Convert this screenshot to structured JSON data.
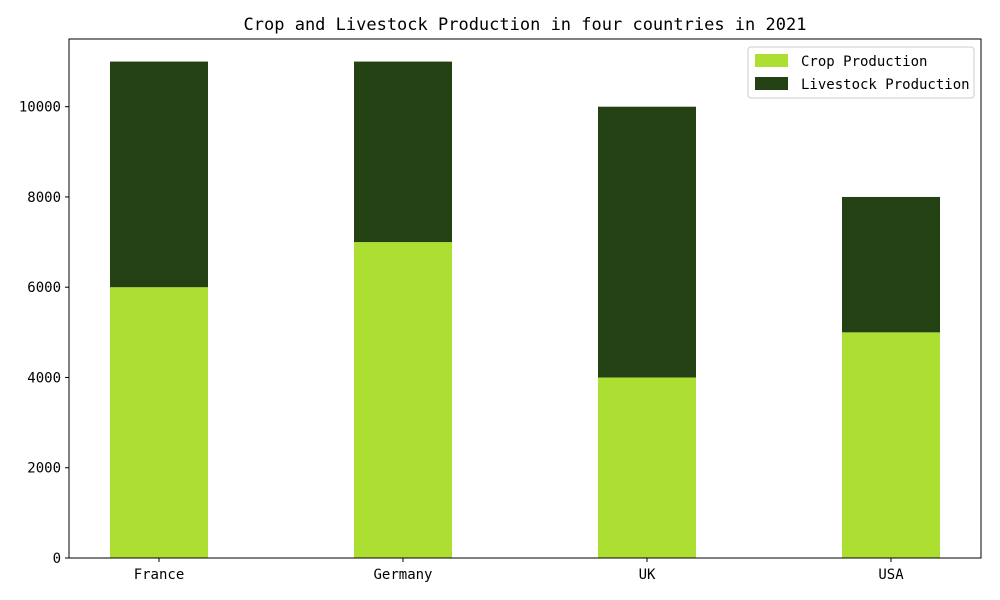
{
  "chart_data": {
    "type": "bar",
    "stacked": true,
    "title": "Crop and Livestock Production in four countries in 2021",
    "xlabel": "",
    "ylabel": "",
    "categories": [
      "France",
      "Germany",
      "UK",
      "USA"
    ],
    "series": [
      {
        "name": "Crop Production",
        "values": [
          6000,
          7000,
          4000,
          5000
        ],
        "color": "#addf32"
      },
      {
        "name": "Livestock Production",
        "values": [
          5000,
          4000,
          6000,
          3000
        ],
        "color": "#234112"
      }
    ],
    "ylim": [
      0,
      11500
    ],
    "yticks": [
      0,
      2000,
      4000,
      6000,
      8000,
      10000
    ],
    "ytick_labels": [
      "0",
      "2000",
      "4000",
      "6000",
      "8000",
      "10000"
    ],
    "grid": false,
    "legend_position": "top-right"
  }
}
